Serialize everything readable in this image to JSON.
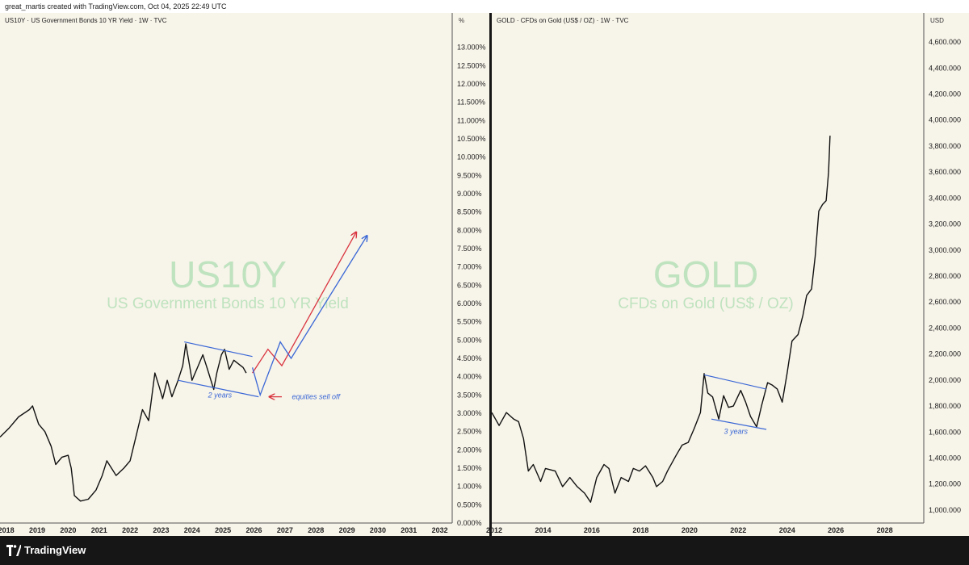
{
  "header": {
    "credit": "great_martis created with TradingView.com, Oct 04, 2025 22:49 UTC"
  },
  "footer": {
    "brand": "TradingView"
  },
  "colors": {
    "background": "#f7f4e9",
    "price": "#111111",
    "blue": "#3b68d6",
    "red": "#d9343f",
    "watermark": "#bfe3bf"
  },
  "chart_data": [
    {
      "type": "line",
      "symbol_title": "US10Y · US Government Bonds 10 YR Yield · 1W · TVC",
      "watermark": {
        "symbol": "US10Y",
        "description": "US Government Bonds 10 YR Yield"
      },
      "unit_label": "%",
      "ylim": [
        0,
        13.5
      ],
      "y_ticks": [
        "13.000%",
        "12.500%",
        "12.000%",
        "11.500%",
        "11.000%",
        "10.500%",
        "10.000%",
        "9.500%",
        "9.000%",
        "8.500%",
        "8.000%",
        "7.500%",
        "7.000%",
        "6.500%",
        "6.000%",
        "5.500%",
        "5.000%",
        "4.500%",
        "4.000%",
        "3.500%",
        "3.000%",
        "2.500%",
        "2.000%",
        "1.500%",
        "1.000%",
        "0.500%",
        "0.000%"
      ],
      "x_ticks": [
        "2018",
        "2019",
        "2020",
        "2021",
        "2022",
        "2023",
        "2024",
        "2025",
        "2026",
        "2027",
        "2028",
        "2029",
        "2030",
        "2031",
        "2032"
      ],
      "xlim": [
        2017.8,
        2032.4
      ],
      "series": [
        {
          "points": [
            [
              2017.8,
              2.35
            ],
            [
              2018.1,
              2.6
            ],
            [
              2018.4,
              2.9
            ],
            [
              2018.75,
              3.1
            ],
            [
              2018.85,
              3.2
            ],
            [
              2019.05,
              2.7
            ],
            [
              2019.25,
              2.5
            ],
            [
              2019.45,
              2.1
            ],
            [
              2019.6,
              1.6
            ],
            [
              2019.8,
              1.8
            ],
            [
              2020.0,
              1.85
            ],
            [
              2020.1,
              1.5
            ],
            [
              2020.2,
              0.75
            ],
            [
              2020.4,
              0.6
            ],
            [
              2020.65,
              0.65
            ],
            [
              2020.9,
              0.9
            ],
            [
              2021.1,
              1.3
            ],
            [
              2021.25,
              1.7
            ],
            [
              2021.55,
              1.3
            ],
            [
              2021.8,
              1.5
            ],
            [
              2022.0,
              1.7
            ],
            [
              2022.2,
              2.4
            ],
            [
              2022.4,
              3.1
            ],
            [
              2022.6,
              2.8
            ],
            [
              2022.8,
              4.1
            ],
            [
              2022.95,
              3.7
            ],
            [
              2023.05,
              3.4
            ],
            [
              2023.2,
              3.9
            ],
            [
              2023.35,
              3.45
            ],
            [
              2023.55,
              3.9
            ],
            [
              2023.7,
              4.3
            ],
            [
              2023.8,
              4.9
            ],
            [
              2023.9,
              4.4
            ],
            [
              2024.0,
              3.9
            ],
            [
              2024.2,
              4.3
            ],
            [
              2024.35,
              4.6
            ],
            [
              2024.5,
              4.2
            ],
            [
              2024.7,
              3.65
            ],
            [
              2024.8,
              4.1
            ],
            [
              2024.95,
              4.6
            ],
            [
              2025.05,
              4.75
            ],
            [
              2025.2,
              4.2
            ],
            [
              2025.35,
              4.45
            ],
            [
              2025.5,
              4.35
            ],
            [
              2025.65,
              4.25
            ],
            [
              2025.75,
              4.1
            ]
          ]
        }
      ],
      "annotations": {
        "channel_top": [
          [
            2023.75,
            4.95
          ],
          [
            2025.95,
            4.55
          ]
        ],
        "channel_bottom": [
          [
            2023.55,
            3.9
          ],
          [
            2026.15,
            3.45
          ]
        ],
        "channel_label": {
          "text": "2 years",
          "at": [
            2024.9,
            3.5
          ]
        },
        "red_path": [
          [
            2025.95,
            4.1
          ],
          [
            2026.45,
            4.75
          ],
          [
            2026.9,
            4.3
          ],
          [
            2029.3,
            7.95
          ]
        ],
        "blue_path": [
          [
            2025.95,
            4.25
          ],
          [
            2026.2,
            3.5
          ],
          [
            2026.85,
            4.95
          ],
          [
            2027.2,
            4.5
          ],
          [
            2029.65,
            7.85
          ]
        ],
        "sell_off_arrow": [
          [
            2026.9,
            3.45
          ],
          [
            2026.5,
            3.45
          ]
        ],
        "sell_off_label": {
          "text": "equities sell off",
          "at": [
            2028.0,
            3.45
          ]
        }
      }
    },
    {
      "type": "line",
      "symbol_title": "GOLD · CFDs on Gold (US$ / OZ) · 1W · TVC",
      "watermark": {
        "symbol": "GOLD",
        "description": "CFDs on Gold (US$ / OZ)"
      },
      "unit_label": "USD",
      "ylim": [
        900,
        4700
      ],
      "y_ticks": [
        "4,600.000",
        "4,400.000",
        "4,200.000",
        "4,000.000",
        "3,800.000",
        "3,600.000",
        "3,400.000",
        "3,200.000",
        "3,000.000",
        "2,800.000",
        "2,600.000",
        "2,400.000",
        "2,200.000",
        "2,000.000",
        "1,800.000",
        "1,600.000",
        "1,400.000",
        "1,200.000",
        "1,000.000"
      ],
      "x_ticks": [
        "2012",
        "2014",
        "2016",
        "2018",
        "2020",
        "2022",
        "2024",
        "2026",
        "2028"
      ],
      "xlim": [
        2011.9,
        2029.6
      ],
      "series": [
        {
          "points": [
            [
              2011.9,
              1750
            ],
            [
              2012.2,
              1650
            ],
            [
              2012.5,
              1750
            ],
            [
              2012.8,
              1700
            ],
            [
              2013.0,
              1680
            ],
            [
              2013.2,
              1550
            ],
            [
              2013.4,
              1300
            ],
            [
              2013.6,
              1350
            ],
            [
              2013.9,
              1220
            ],
            [
              2014.1,
              1320
            ],
            [
              2014.5,
              1300
            ],
            [
              2014.8,
              1180
            ],
            [
              2015.1,
              1250
            ],
            [
              2015.4,
              1180
            ],
            [
              2015.7,
              1130
            ],
            [
              2015.95,
              1060
            ],
            [
              2016.2,
              1250
            ],
            [
              2016.5,
              1350
            ],
            [
              2016.7,
              1320
            ],
            [
              2016.95,
              1130
            ],
            [
              2017.2,
              1250
            ],
            [
              2017.5,
              1220
            ],
            [
              2017.7,
              1320
            ],
            [
              2017.95,
              1300
            ],
            [
              2018.2,
              1340
            ],
            [
              2018.5,
              1250
            ],
            [
              2018.65,
              1180
            ],
            [
              2018.9,
              1220
            ],
            [
              2019.1,
              1300
            ],
            [
              2019.45,
              1420
            ],
            [
              2019.7,
              1500
            ],
            [
              2019.95,
              1520
            ],
            [
              2020.2,
              1630
            ],
            [
              2020.45,
              1750
            ],
            [
              2020.6,
              2050
            ],
            [
              2020.75,
              1900
            ],
            [
              2020.95,
              1870
            ],
            [
              2021.2,
              1700
            ],
            [
              2021.4,
              1880
            ],
            [
              2021.6,
              1790
            ],
            [
              2021.8,
              1800
            ],
            [
              2022.1,
              1920
            ],
            [
              2022.3,
              1830
            ],
            [
              2022.5,
              1720
            ],
            [
              2022.75,
              1640
            ],
            [
              2022.95,
              1800
            ],
            [
              2023.2,
              1980
            ],
            [
              2023.4,
              1960
            ],
            [
              2023.6,
              1930
            ],
            [
              2023.8,
              1830
            ],
            [
              2024.0,
              2050
            ],
            [
              2024.2,
              2300
            ],
            [
              2024.45,
              2350
            ],
            [
              2024.65,
              2500
            ],
            [
              2024.8,
              2650
            ],
            [
              2025.0,
              2700
            ],
            [
              2025.15,
              2950
            ],
            [
              2025.3,
              3300
            ],
            [
              2025.45,
              3350
            ],
            [
              2025.6,
              3380
            ],
            [
              2025.7,
              3600
            ],
            [
              2025.76,
              3880
            ]
          ]
        }
      ],
      "annotations": {
        "channel_top": [
          [
            2020.6,
            2040
          ],
          [
            2023.15,
            1930
          ]
        ],
        "channel_bottom": [
          [
            2020.9,
            1700
          ],
          [
            2023.15,
            1620
          ]
        ],
        "channel_label": {
          "text": "3 years",
          "at": [
            2021.9,
            1605
          ]
        }
      }
    }
  ]
}
